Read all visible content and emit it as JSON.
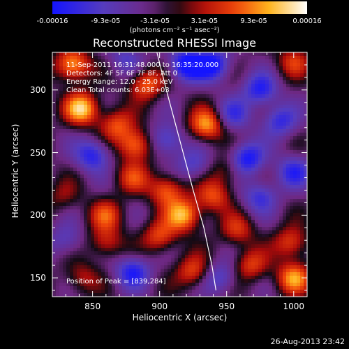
{
  "colorbar": {
    "ticks": [
      "-0.00016",
      "-9.3e-05",
      "-3.1e-05",
      "3.1e-05",
      "9.3e-05",
      "0.00016"
    ],
    "tick_values": [
      -0.00016,
      -9.3e-05,
      -3.1e-05,
      3.1e-05,
      9.3e-05,
      0.00016
    ],
    "units": "(photons cm⁻² s⁻¹ asec⁻²)"
  },
  "title": "Reconstructed RHESSI Image",
  "info": {
    "time": "11-Sep-2011 16:31:48.000 to 16:35:20.000",
    "detectors": "Detectors: 4F 5F 6F 7F 8F, Att 0",
    "energy": "Energy Range: 12.0 - 25.0 keV",
    "method": "Clean     Total counts: 6.03E+03"
  },
  "peak_text": "Position of Peak = [839,284]",
  "footer_date": "26-Aug-2013 23:42",
  "chart_data": {
    "type": "heatmap",
    "title": "Reconstructed RHESSI Image",
    "xlabel": "Heliocentric X (arcsec)",
    "ylabel": "Heliocentric Y (arcsec)",
    "xlim": [
      820,
      1010
    ],
    "ylim": [
      135,
      330
    ],
    "xticks": [
      850,
      900,
      950,
      1000
    ],
    "yticks": [
      150,
      200,
      250,
      300
    ],
    "colorbar_range": [
      -0.00016,
      0.00016
    ],
    "peak_position": [
      839,
      284
    ],
    "grid": false,
    "limb_curve": {
      "x": [
        898,
        905,
        915,
        925,
        933,
        939,
        942
      ],
      "y": [
        330,
        300,
        260,
        220,
        190,
        160,
        140
      ]
    },
    "peaks": [
      {
        "x": 835,
        "y": 320,
        "v": 0.9
      },
      {
        "x": 842,
        "y": 285,
        "v": 1.0
      },
      {
        "x": 868,
        "y": 272,
        "v": 0.6
      },
      {
        "x": 882,
        "y": 256,
        "v": 0.8
      },
      {
        "x": 890,
        "y": 305,
        "v": 0.7
      },
      {
        "x": 880,
        "y": 230,
        "v": 0.5
      },
      {
        "x": 905,
        "y": 220,
        "v": 0.7
      },
      {
        "x": 918,
        "y": 200,
        "v": 0.9
      },
      {
        "x": 900,
        "y": 183,
        "v": 0.6
      },
      {
        "x": 935,
        "y": 272,
        "v": 0.85
      },
      {
        "x": 940,
        "y": 215,
        "v": 0.6
      },
      {
        "x": 958,
        "y": 188,
        "v": 0.5
      },
      {
        "x": 998,
        "y": 178,
        "v": 0.6
      },
      {
        "x": 1000,
        "y": 150,
        "v": 0.8
      },
      {
        "x": 968,
        "y": 160,
        "v": 0.55
      },
      {
        "x": 925,
        "y": 155,
        "v": 0.6
      },
      {
        "x": 860,
        "y": 178,
        "v": 0.5
      },
      {
        "x": 842,
        "y": 150,
        "v": 0.4
      },
      {
        "x": 1000,
        "y": 323,
        "v": 0.5
      },
      {
        "x": 828,
        "y": 215,
        "v": 0.3
      },
      {
        "x": 950,
        "y": 235,
        "v": 0.35
      },
      {
        "x": 860,
        "y": 200,
        "v": 0.55
      }
    ],
    "troughs": [
      {
        "x": 920,
        "y": 320,
        "v": -0.9
      },
      {
        "x": 940,
        "y": 320,
        "v": -0.8
      },
      {
        "x": 975,
        "y": 300,
        "v": -0.7
      },
      {
        "x": 990,
        "y": 275,
        "v": -0.6
      },
      {
        "x": 965,
        "y": 245,
        "v": -0.8
      },
      {
        "x": 955,
        "y": 280,
        "v": -0.5
      },
      {
        "x": 905,
        "y": 260,
        "v": -0.6
      },
      {
        "x": 850,
        "y": 248,
        "v": -0.7
      },
      {
        "x": 975,
        "y": 215,
        "v": -0.55
      },
      {
        "x": 880,
        "y": 155,
        "v": -0.7
      },
      {
        "x": 945,
        "y": 150,
        "v": -0.5
      },
      {
        "x": 830,
        "y": 180,
        "v": -0.4
      },
      {
        "x": 1000,
        "y": 235,
        "v": -0.6
      },
      {
        "x": 925,
        "y": 240,
        "v": -0.45
      },
      {
        "x": 875,
        "y": 325,
        "v": -0.4
      }
    ]
  }
}
